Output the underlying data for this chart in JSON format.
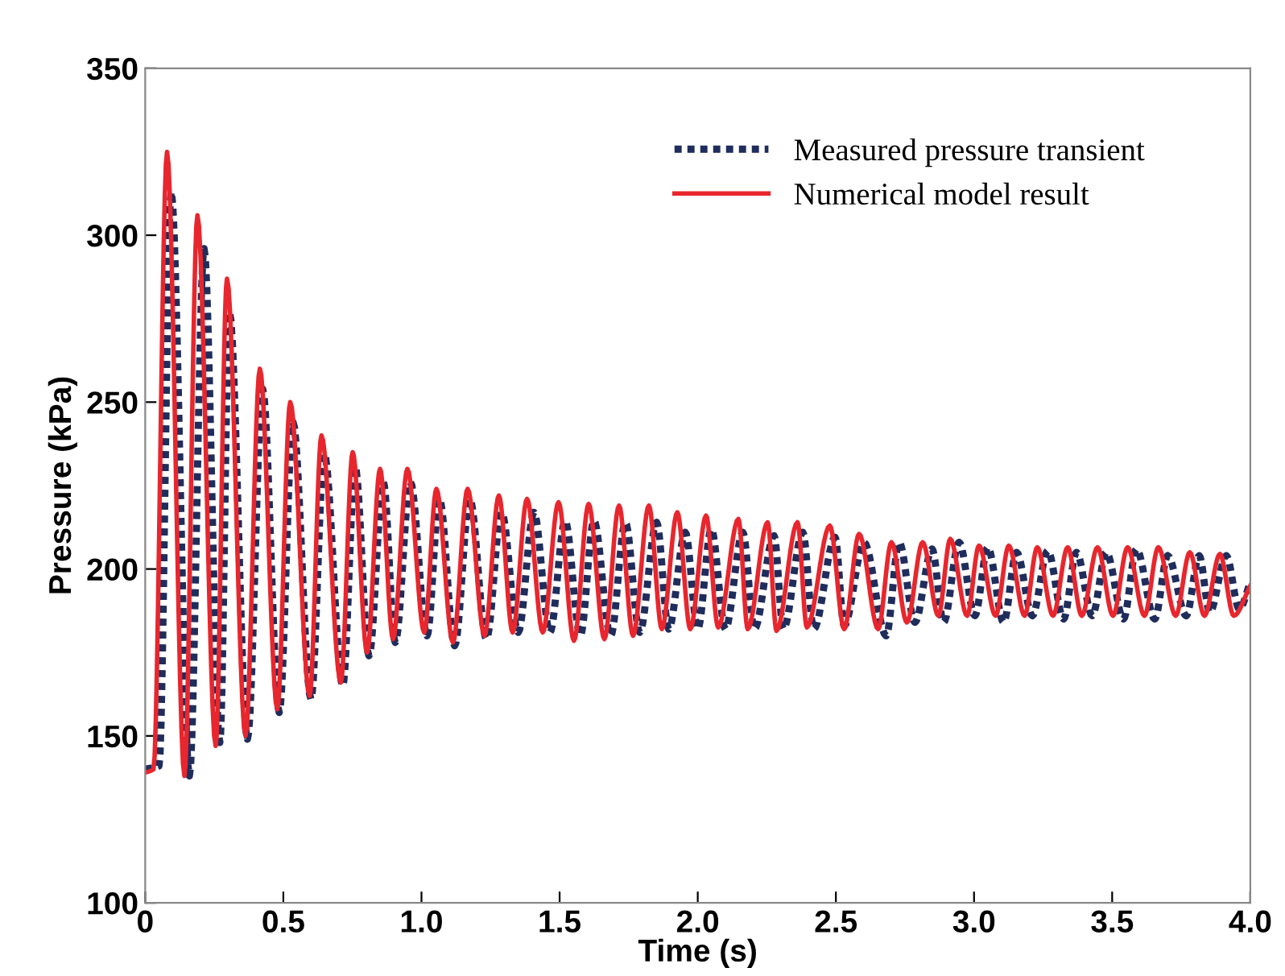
{
  "chart_data": {
    "type": "line",
    "xlabel": "Time (s)",
    "ylabel": "Pressure (kPa)",
    "xlim": [
      0,
      4.0
    ],
    "ylim": [
      100,
      350
    ],
    "xticks": [
      {
        "value": 0,
        "label": "0"
      },
      0.5,
      {
        "value": 1,
        "label": "1.0"
      },
      1.5,
      {
        "value": 2,
        "label": "2.0"
      },
      2.5,
      {
        "value": 3,
        "label": "3.0"
      },
      3.5,
      {
        "value": 4,
        "label": "4.0"
      }
    ],
    "yticks": [
      100,
      150,
      200,
      250,
      300,
      350
    ],
    "grid": false,
    "legend": "top right",
    "series": [
      {
        "name": "Measured pressure transient",
        "color": "#1f2d5c",
        "line_style": "dotted",
        "x": [
          0,
          0.05,
          0.094,
          0.16,
          0.213,
          0.27,
          0.305,
          0.37,
          0.425,
          0.485,
          0.535,
          0.6,
          0.648,
          0.715,
          0.76,
          0.81,
          0.862,
          0.905,
          0.96,
          1.02,
          1.065,
          1.12,
          1.175,
          1.235,
          1.29,
          1.35,
          1.407,
          1.465,
          1.52,
          1.575,
          1.624,
          1.685,
          1.738,
          1.79,
          1.851,
          1.895,
          1.955,
          2.0,
          2.049,
          2.1,
          2.163,
          2.205,
          2.276,
          2.31,
          2.38,
          2.42,
          2.497,
          2.53,
          2.602,
          2.682,
          2.729,
          2.786,
          2.848,
          2.89,
          2.946,
          3.003,
          3.05,
          3.107,
          3.154,
          3.211,
          3.267,
          3.324,
          3.371,
          3.428,
          3.479,
          3.541,
          3.588,
          3.654,
          3.701,
          3.768,
          3.815,
          3.853,
          3.913,
          3.96,
          4.0
        ],
        "values": [
          140,
          141,
          313,
          138,
          296,
          148,
          277,
          149,
          254,
          157,
          244,
          161,
          234.5,
          165,
          230.5,
          174,
          226,
          178,
          226,
          180,
          221,
          177,
          221,
          179,
          217,
          181,
          217,
          181,
          214.5,
          180,
          214.5,
          180,
          214,
          181,
          214,
          182,
          211,
          182,
          212,
          182,
          211,
          182,
          210,
          182,
          211,
          182,
          209.5,
          183,
          208,
          180,
          208,
          184,
          206,
          184,
          208,
          186,
          206.5,
          184,
          205,
          186,
          205.5,
          185,
          205,
          186,
          205,
          185,
          206,
          185,
          204,
          186,
          204,
          187,
          204,
          188,
          196
        ]
      },
      {
        "name": "Numerical model result",
        "color": "#e8262d",
        "line_style": "solid",
        "x": [
          0,
          0.03,
          0.079,
          0.142,
          0.189,
          0.255,
          0.296,
          0.363,
          0.415,
          0.478,
          0.525,
          0.595,
          0.638,
          0.708,
          0.751,
          0.803,
          0.85,
          0.897,
          0.949,
          1.01,
          1.054,
          1.114,
          1.167,
          1.228,
          1.28,
          1.33,
          1.382,
          1.439,
          1.496,
          1.552,
          1.605,
          1.662,
          1.715,
          1.766,
          1.823,
          1.87,
          1.926,
          1.973,
          2.03,
          2.074,
          2.147,
          2.181,
          2.253,
          2.285,
          2.361,
          2.395,
          2.478,
          2.53,
          2.584,
          2.653,
          2.701,
          2.757,
          2.814,
          2.871,
          2.914,
          2.975,
          3.018,
          3.078,
          3.126,
          3.183,
          3.229,
          3.286,
          3.339,
          3.39,
          3.447,
          3.503,
          3.556,
          3.617,
          3.667,
          3.73,
          3.781,
          3.834,
          3.89,
          3.94,
          4.0
        ],
        "values": [
          139,
          140,
          325,
          138,
          306,
          147,
          287,
          150,
          260,
          158,
          250,
          162,
          240,
          166,
          235,
          175,
          230,
          179,
          230,
          181,
          224,
          178,
          224,
          180,
          222,
          181,
          221,
          181,
          220,
          178.5,
          219.5,
          179,
          219,
          180,
          219,
          182,
          217,
          182,
          216,
          182.5,
          215,
          182,
          214,
          181.5,
          214,
          182.5,
          213,
          182,
          210.5,
          182,
          208,
          184,
          208,
          186,
          209,
          186,
          207,
          186,
          207,
          186,
          206.5,
          186,
          206.5,
          186,
          206.5,
          186,
          206.5,
          186,
          206.5,
          186,
          205,
          186,
          204.5,
          186,
          195
        ]
      }
    ]
  }
}
